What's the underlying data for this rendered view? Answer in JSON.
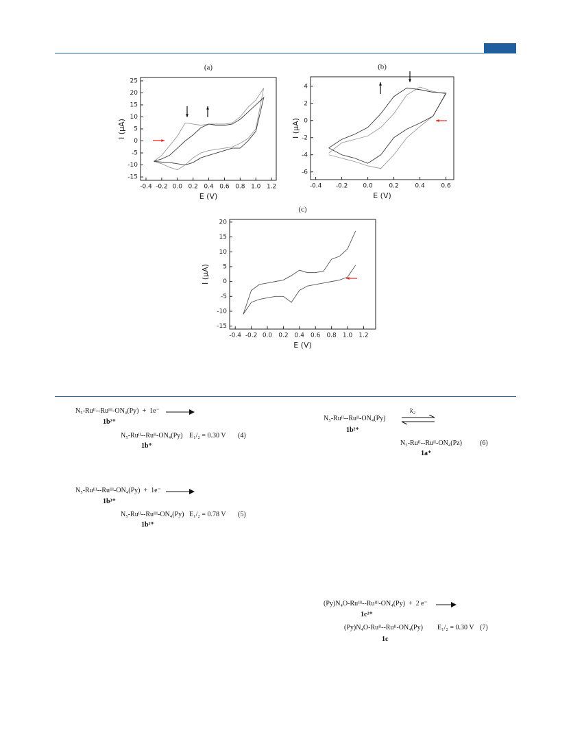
{
  "chart_data": [
    {
      "type": "line",
      "title": "(a)",
      "x_label": "E (V)",
      "y_label": "I (μA)",
      "x": [
        -0.3,
        -0.2,
        -0.1,
        0,
        0.1,
        0.2,
        0.3,
        0.4,
        0.5,
        0.6,
        0.7,
        0.8,
        0.9,
        1.0,
        1.1,
        1.0,
        0.9,
        0.8,
        0.7,
        0.6,
        0.5,
        0.4,
        0.3,
        0.2,
        0.1,
        0,
        -0.1,
        -0.2,
        -0.3
      ],
      "series": [
        {
          "color": "#9a9a9a",
          "values": [
            -8.5,
            -6,
            -2,
            2,
            7.5,
            7,
            6.5,
            7,
            7,
            7,
            7.5,
            10,
            14,
            17,
            22,
            5,
            1,
            -1,
            -2.5,
            -3,
            -3.5,
            -4,
            -5,
            -7,
            -10,
            -12,
            -11,
            -9.5,
            -8.5
          ]
        },
        {
          "color": "#3a3a3a",
          "values": [
            -8.5,
            -7.5,
            -6,
            -3,
            0,
            2.5,
            5.5,
            7,
            6.5,
            6.5,
            7,
            9,
            12,
            15,
            18,
            4,
            0,
            -3,
            -3,
            -4,
            -5,
            -6,
            -7,
            -9,
            -10,
            -9.5,
            -9,
            -8.8,
            -8.5
          ]
        }
      ],
      "xlim": [
        -0.47,
        1.26
      ],
      "ylim": [
        -16.4,
        26.4
      ],
      "xticks": [
        -0.4,
        -0.2,
        {
          "value": 0,
          "label": "0.0"
        },
        0.2,
        0.4,
        0.6,
        0.8,
        {
          "value": 1,
          "label": "1.0"
        },
        1.2
      ],
      "yticks": [
        -15,
        -10,
        -5,
        0,
        5,
        10,
        15,
        20,
        25
      ]
    },
    {
      "type": "line",
      "title": "(b)",
      "x_label": "E (V)",
      "y_label": "I (μA)",
      "x": [
        -0.3,
        -0.2,
        -0.1,
        0,
        0.1,
        0.2,
        0.3,
        0.4,
        0.5,
        0.6,
        0.5,
        0.4,
        0.3,
        0.2,
        0.1,
        0,
        -0.1,
        -0.2,
        -0.3
      ],
      "series": [
        {
          "color": "#9a9a9a",
          "values": [
            -3.8,
            -2.6,
            -2.2,
            -1.8,
            -0.8,
            0.8,
            3,
            3.9,
            3.4,
            3.1,
            0.5,
            -0.7,
            -2,
            -4,
            -5.6,
            -5.3,
            -4.8,
            -4.4,
            -4
          ]
        },
        {
          "color": "#3a3a3a",
          "values": [
            -3.2,
            -2.2,
            -1.6,
            -0.8,
            0.8,
            2.8,
            3.8,
            3.6,
            3.3,
            3.2,
            0.5,
            -0.3,
            -1,
            -2,
            -4,
            -5,
            -4.4,
            -4,
            -3.2
          ]
        }
      ],
      "xlim": [
        -0.44,
        0.66
      ],
      "ylim": [
        -6.9,
        5.1
      ],
      "xticks": [
        -0.4,
        -0.2,
        {
          "value": 0,
          "label": "0.0"
        },
        0.2,
        0.4,
        0.6
      ],
      "yticks": [
        -6,
        -4,
        -2,
        0,
        2,
        4
      ]
    },
    {
      "type": "line",
      "title": "(c)",
      "x_label": "E (V)",
      "y_label": "I (μA)",
      "x": [
        1.1,
        1.0,
        0.9,
        0.8,
        0.7,
        0.6,
        0.5,
        0.4,
        0.3,
        0.2,
        0.1,
        0,
        -0.1,
        -0.2,
        -0.3,
        -0.2,
        -0.1,
        0,
        0.1,
        0.2,
        0.3,
        0.4,
        0.5,
        0.6,
        0.7,
        0.8,
        0.9,
        1.0,
        1.1
      ],
      "series": [
        {
          "color": "#555555",
          "values": [
            5.5,
            1.5,
            0.5,
            0,
            -0.5,
            -1,
            -1.5,
            -3,
            -7,
            -5,
            -5,
            -5.5,
            -6,
            -7,
            -11,
            -3,
            -1,
            -0.5,
            0,
            0.5,
            2,
            3.8,
            3,
            3,
            3.5,
            7.5,
            8.5,
            11,
            17
          ]
        }
      ],
      "xlim": [
        -0.47,
        1.35
      ],
      "ylim": [
        -16,
        20.9
      ],
      "xticks": [
        -0.4,
        -0.2,
        {
          "value": 0,
          "label": "0.0"
        },
        0.2,
        0.4,
        0.6,
        0.8,
        {
          "value": 1,
          "label": "1.0"
        },
        1.2
      ],
      "yticks": [
        -15,
        -10,
        -5,
        0,
        5,
        10,
        15,
        20
      ]
    }
  ],
  "equations": [
    {
      "reactant": "N₅-Ruᴵᴵ--Ruᴵᴵᴵ-ON₄(Py)  +  1e⁻",
      "reactant_label": "1b²⁺",
      "product": "N₅-Ruᴵᴵ--Ruᴵᴵ-ON₄(Py)",
      "potential": "E₁/₂ = 0.30 V",
      "number": "(4)",
      "product_label": "1b⁺"
    },
    {
      "reactant": "N₅-Ruᴵᴵᴵ--Ruᴵᴵᴵ-ON₄(Py)  +  1e⁻",
      "reactant_label": "1b³⁺",
      "product": "N₅-Ruᴵᴵ--Ruᴵᴵᴵ-ON₄(Py)",
      "potential": "E₁/₂ = 0.78 V",
      "number": "(5)",
      "product_label": "1b²⁺"
    },
    {
      "reactant": "N₅-Ruᴵᴵ--Ruᴵᴵ-ON₄(Py)",
      "reactant_label": "1b²⁺",
      "rate_constant": "k₂",
      "product": "N₅-Ruᴵᴵ--Ruᴵᴵ-ON₄(Pz)",
      "number": "(6)",
      "product_label": "1a⁺"
    },
    {
      "reactant": "(Py)N₄O-Ruᴵᴵᴵ--Ruᴵᴵᴵ-ON₄(Py)  +  2 e⁻",
      "reactant_label": "1c²⁺",
      "product": "(Py)N₄O-Ruᴵᴵ--Ruᴵᴵ-ON₄(Py)",
      "potential": "E₁/₂ = 0.30 V",
      "number": "(7)",
      "product_label": "1c"
    }
  ]
}
